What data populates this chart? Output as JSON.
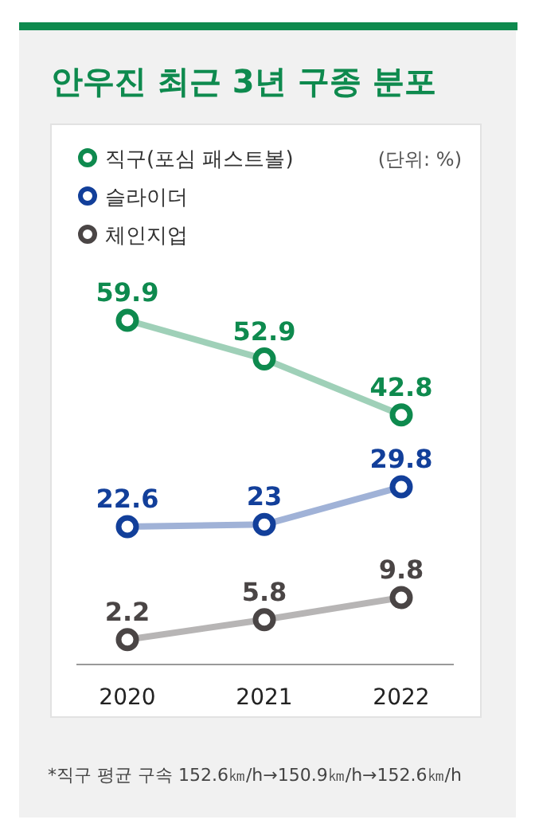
{
  "chart_data": {
    "type": "line",
    "title": "안우진 최근 3년 구종 분포",
    "categories": [
      "2020",
      "2021",
      "2022"
    ],
    "series": [
      {
        "name": "직구(포심 패스트볼)",
        "color": "#0e8a4e",
        "values": [
          59.9,
          52.9,
          42.8
        ]
      },
      {
        "name": "슬라이더",
        "color": "#123f9a",
        "values": [
          22.6,
          23,
          29.8
        ]
      },
      {
        "name": "체인지업",
        "color": "#4a4545",
        "values": [
          2.2,
          5.8,
          9.8
        ]
      }
    ],
    "data_labels": true,
    "legend": "top left",
    "marker": "circle",
    "line_style": "solid",
    "annotations": [
      "(단위: %)",
      "*직구 평균 구속 152.6㎞/h→150.9㎞/h→152.6㎞/h"
    ]
  }
}
